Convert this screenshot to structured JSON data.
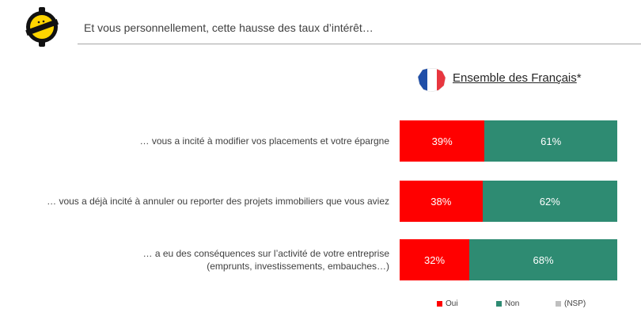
{
  "header": {
    "title": "Et vous personnellement, cette hausse des taux d’intérêt…"
  },
  "segment": {
    "label": "Ensemble des Français",
    "asterisk": "*",
    "flag_colors": [
      "#1f4ea8",
      "#ffffff",
      "#e8363f"
    ]
  },
  "colors": {
    "oui": "#ff0000",
    "non": "#2e8b72",
    "nsp": "#bfbfbf"
  },
  "chart_data": {
    "type": "bar",
    "orientation": "horizontal-stacked-100",
    "categories": [
      [
        "… vous a incité à modifier vos placements et votre épargne"
      ],
      [
        "… vous a déjà incité à annuler ou reporter des projets immobiliers que vous aviez"
      ],
      [
        "… a eu des conséquences sur l’activité de votre entreprise",
        "(emprunts, investissements, embauches…)"
      ]
    ],
    "series": [
      {
        "name": "Oui",
        "values": [
          39,
          38,
          32
        ],
        "labels": [
          "39%",
          "38%",
          "32%"
        ],
        "color": "#ff0000"
      },
      {
        "name": "Non",
        "values": [
          61,
          62,
          68
        ],
        "labels": [
          "61%",
          "62%",
          "68%"
        ],
        "color": "#2e8b72"
      },
      {
        "name": "(NSP)",
        "values": [
          0,
          0,
          0
        ],
        "labels": [
          "",
          "",
          ""
        ],
        "color": "#bfbfbf"
      }
    ],
    "xlim": [
      0,
      100
    ],
    "legend_position": "bottom-right"
  }
}
